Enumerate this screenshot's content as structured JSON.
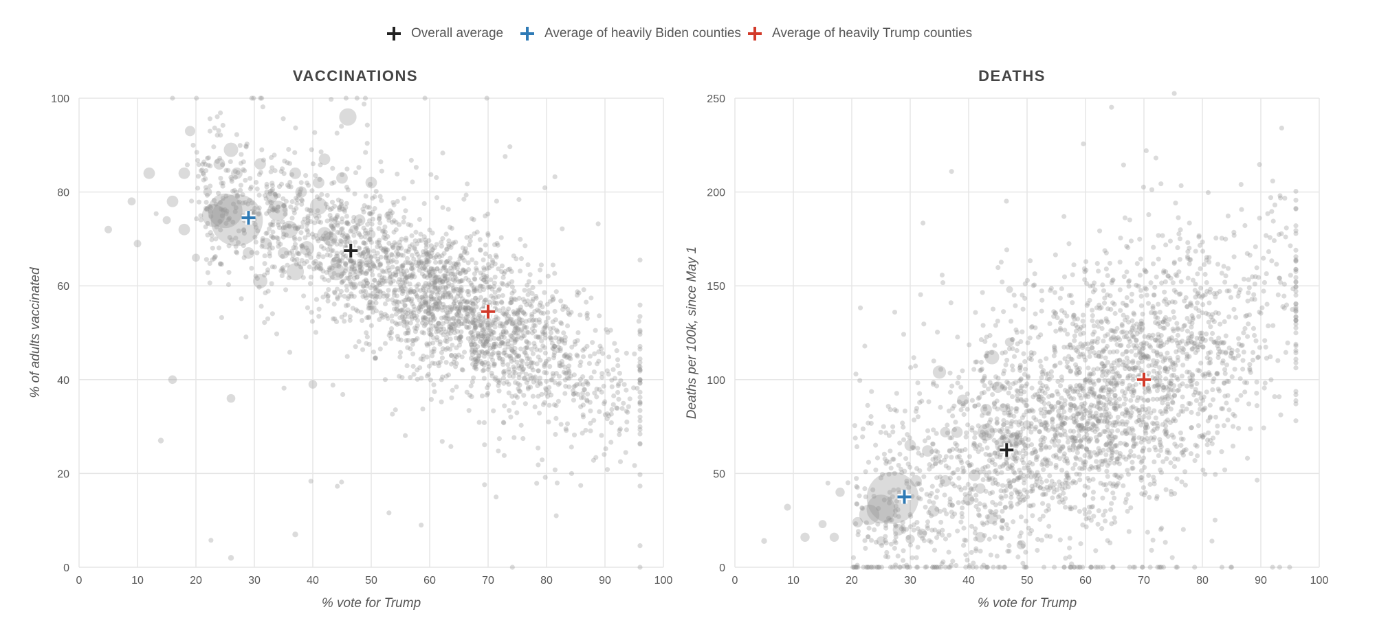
{
  "legend": [
    {
      "label": "Overall average",
      "color": "#222222"
    },
    {
      "label": "Average of heavily Biden counties",
      "color": "#2f7bb6"
    },
    {
      "label": "Average of heavily Trump counties",
      "color": "#d23a2a"
    }
  ],
  "chart_data": [
    {
      "type": "scatter",
      "title": "VACCINATIONS",
      "xlabel": "% vote for Trump",
      "ylabel": "% of adults vaccinated",
      "xlim": [
        0,
        100
      ],
      "ylim": [
        0,
        100
      ],
      "xticks": [
        0,
        10,
        20,
        30,
        40,
        50,
        60,
        70,
        80,
        90,
        100
      ],
      "yticks": [
        0,
        20,
        40,
        60,
        80,
        100
      ],
      "grid": true,
      "point_color": "#8f8f8f",
      "averages": [
        {
          "name": "Overall average",
          "x": 46.5,
          "y": 67.5,
          "color": "#222222"
        },
        {
          "name": "Average of heavily Biden counties",
          "x": 29,
          "y": 74.5,
          "color": "#2f7bb6"
        },
        {
          "name": "Average of heavily Trump counties",
          "x": 70,
          "y": 54.5,
          "color": "#d23a2a"
        }
      ],
      "points": [
        [
          27,
          74,
          9
        ],
        [
          25,
          76,
          6
        ],
        [
          23,
          75,
          4
        ],
        [
          46,
          96,
          3
        ],
        [
          34,
          76,
          3.5
        ],
        [
          41,
          77,
          3
        ],
        [
          44,
          63,
          3
        ],
        [
          37,
          63,
          3
        ],
        [
          31,
          61,
          2.5
        ],
        [
          26,
          89,
          2.5
        ],
        [
          24,
          86,
          2
        ],
        [
          12,
          84,
          2
        ],
        [
          18,
          84,
          2
        ],
        [
          19,
          93,
          1.8
        ],
        [
          18,
          72,
          2
        ],
        [
          16,
          78,
          2
        ],
        [
          42,
          87,
          2
        ],
        [
          50,
          82,
          2
        ],
        [
          27,
          84,
          2
        ],
        [
          31,
          86,
          2
        ],
        [
          37,
          84,
          2
        ],
        [
          26,
          36,
          1.5
        ],
        [
          16,
          40,
          1.5
        ],
        [
          40,
          39,
          1.5
        ],
        [
          9,
          78,
          1.4
        ],
        [
          5,
          72,
          1.3
        ],
        [
          10,
          69,
          1.3
        ],
        [
          14,
          27,
          1
        ],
        [
          37,
          7,
          1
        ],
        [
          26,
          2,
          1
        ],
        [
          36,
          72,
          3
        ],
        [
          39,
          68,
          2.5
        ],
        [
          42,
          71,
          2.5
        ],
        [
          33,
          79,
          2
        ],
        [
          29,
          67,
          2
        ],
        [
          48,
          74,
          2
        ],
        [
          45,
          83,
          2
        ],
        [
          43,
          70,
          2.5
        ],
        [
          38,
          80,
          2
        ],
        [
          35,
          67,
          2
        ],
        [
          53,
          75,
          1.5
        ],
        [
          47,
          72,
          1.5
        ],
        [
          50,
          71,
          1.5
        ],
        [
          47,
          60,
          1.5
        ],
        [
          44,
          65,
          2
        ],
        [
          41,
          82,
          2
        ],
        [
          32,
          69,
          2
        ],
        [
          22,
          80,
          1.5
        ],
        [
          15,
          74,
          1.4
        ],
        [
          20,
          66,
          1.4
        ]
      ],
      "cloud_seed": 11,
      "cloud_count": 2600
    },
    {
      "type": "scatter",
      "title": "DEATHS",
      "xlabel": "% vote for Trump",
      "ylabel": "Deaths per 100k, since May 1",
      "xlim": [
        0,
        100
      ],
      "ylim": [
        0,
        250
      ],
      "xticks": [
        0,
        10,
        20,
        30,
        40,
        50,
        60,
        70,
        80,
        90,
        100
      ],
      "yticks": [
        0,
        50,
        100,
        150,
        200,
        250
      ],
      "grid": true,
      "point_color": "#8f8f8f",
      "averages": [
        {
          "name": "Overall average",
          "x": 46.5,
          "y": 62.5,
          "color": "#222222"
        },
        {
          "name": "Average of heavily Biden counties",
          "x": 29,
          "y": 37.5,
          "color": "#2f7bb6"
        },
        {
          "name": "Average of heavily Trump counties",
          "x": 70,
          "y": 100,
          "color": "#d23a2a"
        }
      ],
      "points": [
        [
          27,
          37,
          9
        ],
        [
          25,
          31,
          5
        ],
        [
          23,
          28,
          3.5
        ],
        [
          43,
          72,
          3
        ],
        [
          46,
          65,
          3
        ],
        [
          48,
          68,
          2.5
        ],
        [
          44,
          112,
          2.5
        ],
        [
          35,
          104,
          2.3
        ],
        [
          39,
          89,
          2
        ],
        [
          43,
          84,
          2
        ],
        [
          33,
          62,
          2
        ],
        [
          30,
          65,
          2
        ],
        [
          45,
          96,
          2
        ],
        [
          12,
          16,
          1.6
        ],
        [
          18,
          40,
          1.6
        ],
        [
          17,
          16,
          1.6
        ],
        [
          15,
          23,
          1.4
        ],
        [
          9,
          32,
          1.2
        ],
        [
          5,
          14,
          1
        ],
        [
          47,
          148,
          1.2
        ],
        [
          38,
          72,
          2
        ],
        [
          41,
          49,
          2
        ],
        [
          36,
          46,
          2
        ],
        [
          44,
          26,
          2
        ],
        [
          40,
          36,
          2
        ],
        [
          34,
          30,
          2
        ],
        [
          32,
          18,
          1.7
        ],
        [
          30,
          15,
          1.6
        ],
        [
          49,
          12,
          1.6
        ],
        [
          42,
          16,
          1.8
        ],
        [
          47,
          120,
          1.6
        ],
        [
          36,
          72,
          1.8
        ],
        [
          31,
          46,
          2
        ],
        [
          28,
          20,
          2
        ],
        [
          21,
          24,
          1.8
        ],
        [
          25,
          14,
          1.6
        ],
        [
          42,
          42,
          1.8
        ],
        [
          46,
          85,
          1.5
        ],
        [
          50,
          76,
          1.5
        ],
        [
          53,
          56,
          1.5
        ]
      ],
      "cloud_seed": 29,
      "cloud_count": 2800
    }
  ]
}
